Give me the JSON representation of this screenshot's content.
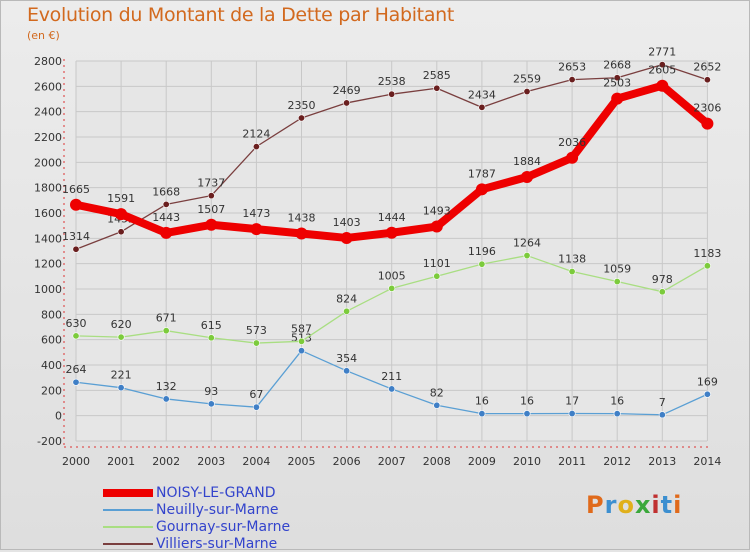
{
  "chart_data": {
    "type": "line",
    "title": "Evolution du Montant de la Dette par Habitant",
    "unit_label": "(en €)",
    "x": [
      "2000",
      "2001",
      "2002",
      "2003",
      "2004",
      "2005",
      "2006",
      "2007",
      "2008",
      "2009",
      "2010",
      "2011",
      "2012",
      "2013",
      "2014"
    ],
    "ylim": [
      -200,
      2800
    ],
    "yticks": [
      -200,
      0,
      200,
      400,
      600,
      800,
      1000,
      1200,
      1400,
      1600,
      1800,
      2000,
      2200,
      2400,
      2600,
      2800
    ],
    "grid": true,
    "legend_position": "bottom-left",
    "series": [
      {
        "name": "NOISY-LE-GRAND",
        "color": "#ee0000",
        "marker": "#ee0000",
        "emphasis": true,
        "values": [
          1665,
          1591,
          1443,
          1507,
          1473,
          1438,
          1403,
          1444,
          1493,
          1787,
          1884,
          2036,
          2503,
          2605,
          2306
        ]
      },
      {
        "name": "Neuilly-sur-Marne",
        "color": "#5a9fd4",
        "marker": "#3f7fc6",
        "values": [
          264,
          221,
          132,
          93,
          67,
          513,
          354,
          211,
          82,
          16,
          16,
          17,
          16,
          7,
          169
        ]
      },
      {
        "name": "Gournay-sur-Marne",
        "color": "#a9de82",
        "marker": "#7ccb3c",
        "values": [
          630,
          620,
          671,
          615,
          573,
          587,
          824,
          1005,
          1101,
          1196,
          1264,
          1138,
          1059,
          978,
          1183
        ]
      },
      {
        "name": "Villiers-sur-Marne",
        "color": "#7a3f3f",
        "marker": "#6a1f1f",
        "values": [
          1314,
          1452,
          1668,
          1737,
          2124,
          2350,
          2469,
          2538,
          2585,
          2434,
          2559,
          2653,
          2668,
          2771,
          2652
        ]
      }
    ]
  },
  "logo": {
    "text": "Proxiti",
    "colors": [
      "#e06a1b",
      "#3c8fd0",
      "#e0b01b",
      "#3aa83a",
      "#c03030",
      "#3c8fd0",
      "#e06a1b"
    ]
  }
}
